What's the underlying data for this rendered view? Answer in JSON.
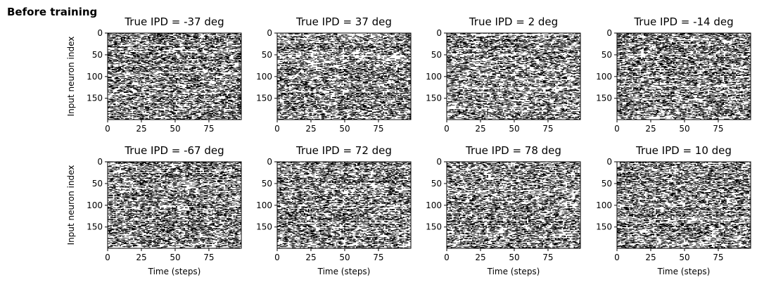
{
  "figure": {
    "suptitle": "Before training",
    "colors": {
      "spike": "#000000",
      "background": "#ffffff",
      "axes": "#000000"
    }
  },
  "chart_data": [
    {
      "type": "heatmap",
      "title": "True IPD = -37 deg",
      "xlabel": "",
      "ylabel": "Input neuron index",
      "xlim": [
        0,
        99
      ],
      "ylim": [
        0,
        199
      ],
      "y_inverted": true,
      "xticks": [
        0,
        25,
        50,
        75
      ],
      "yticks": [
        0,
        50,
        100,
        150
      ],
      "grid": false,
      "values": "binary spike raster, ~200 input neurons x ~100 time steps"
    },
    {
      "type": "heatmap",
      "title": "True IPD = 37 deg",
      "xlabel": "",
      "ylabel": "",
      "xlim": [
        0,
        99
      ],
      "ylim": [
        0,
        199
      ],
      "y_inverted": true,
      "xticks": [
        0,
        25,
        50,
        75
      ],
      "yticks": [
        0,
        50,
        100,
        150
      ],
      "grid": false,
      "values": "binary spike raster, ~200 input neurons x ~100 time steps"
    },
    {
      "type": "heatmap",
      "title": "True IPD = 2 deg",
      "xlabel": "",
      "ylabel": "",
      "xlim": [
        0,
        99
      ],
      "ylim": [
        0,
        199
      ],
      "y_inverted": true,
      "xticks": [
        0,
        25,
        50,
        75
      ],
      "yticks": [
        0,
        50,
        100,
        150
      ],
      "grid": false,
      "values": "binary spike raster, ~200 input neurons x ~100 time steps"
    },
    {
      "type": "heatmap",
      "title": "True IPD = -14 deg",
      "xlabel": "",
      "ylabel": "",
      "xlim": [
        0,
        99
      ],
      "ylim": [
        0,
        199
      ],
      "y_inverted": true,
      "xticks": [
        0,
        25,
        50,
        75
      ],
      "yticks": [
        0,
        50,
        100,
        150
      ],
      "grid": false,
      "values": "binary spike raster, ~200 input neurons x ~100 time steps"
    },
    {
      "type": "heatmap",
      "title": "True IPD = -67 deg",
      "xlabel": "Time (steps)",
      "ylabel": "Input neuron index",
      "xlim": [
        0,
        99
      ],
      "ylim": [
        0,
        199
      ],
      "y_inverted": true,
      "xticks": [
        0,
        25,
        50,
        75
      ],
      "yticks": [
        0,
        50,
        100,
        150
      ],
      "grid": false,
      "values": "binary spike raster, ~200 input neurons x ~100 time steps"
    },
    {
      "type": "heatmap",
      "title": "True IPD = 72 deg",
      "xlabel": "Time (steps)",
      "ylabel": "",
      "xlim": [
        0,
        99
      ],
      "ylim": [
        0,
        199
      ],
      "y_inverted": true,
      "xticks": [
        0,
        25,
        50,
        75
      ],
      "yticks": [
        0,
        50,
        100,
        150
      ],
      "grid": false,
      "values": "binary spike raster, ~200 input neurons x ~100 time steps"
    },
    {
      "type": "heatmap",
      "title": "True IPD = 78 deg",
      "xlabel": "Time (steps)",
      "ylabel": "",
      "xlim": [
        0,
        99
      ],
      "ylim": [
        0,
        199
      ],
      "y_inverted": true,
      "xticks": [
        0,
        25,
        50,
        75
      ],
      "yticks": [
        0,
        50,
        100,
        150
      ],
      "grid": false,
      "values": "binary spike raster, ~200 input neurons x ~100 time steps"
    },
    {
      "type": "heatmap",
      "title": "True IPD = 10 deg",
      "xlabel": "Time (steps)",
      "ylabel": "",
      "xlim": [
        0,
        99
      ],
      "ylim": [
        0,
        199
      ],
      "y_inverted": true,
      "xticks": [
        0,
        25,
        50,
        75
      ],
      "yticks": [
        0,
        50,
        100,
        150
      ],
      "grid": false,
      "values": "binary spike raster, ~200 input neurons x ~100 time steps"
    }
  ]
}
